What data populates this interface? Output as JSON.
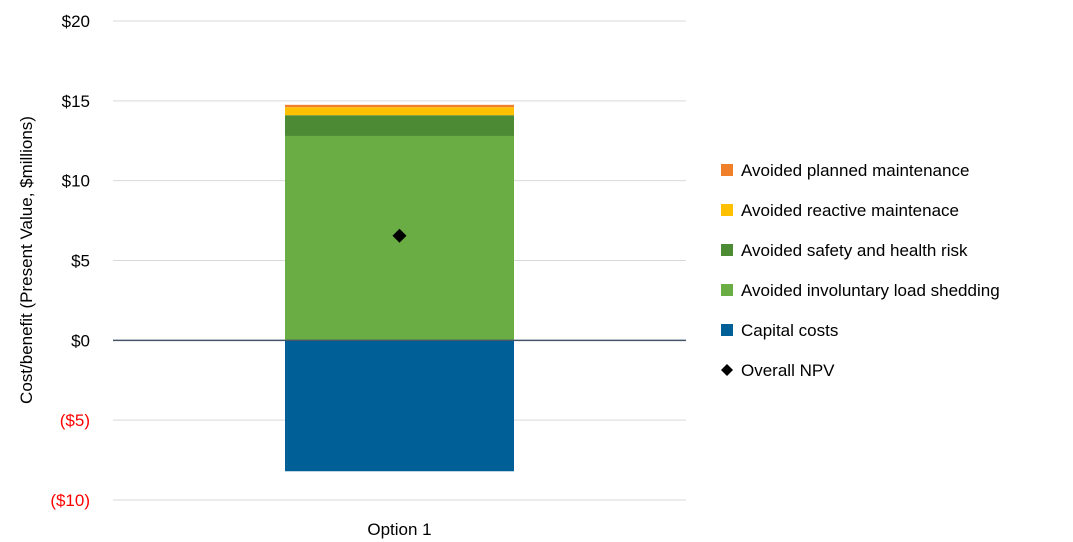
{
  "chart_data": {
    "type": "bar",
    "stacked": true,
    "categories": [
      "Option 1"
    ],
    "ylabel": "Cost/benefit (Present Value, $millions)",
    "ylim": [
      -10,
      20
    ],
    "yticks": [
      {
        "value": 20,
        "label": "$20",
        "color": "#000000"
      },
      {
        "value": 15,
        "label": "$15",
        "color": "#000000"
      },
      {
        "value": 10,
        "label": "$10",
        "color": "#000000"
      },
      {
        "value": 5,
        "label": "$5",
        "color": "#000000"
      },
      {
        "value": 0,
        "label": "$0",
        "color": "#000000"
      },
      {
        "value": -5,
        "label": "($5)",
        "color": "#ff0000"
      },
      {
        "value": -10,
        "label": "($10)",
        "color": "#ff0000"
      }
    ],
    "grid": true,
    "legend_position": "right",
    "series": [
      {
        "name": "Capital costs",
        "values": [
          -8.2
        ],
        "color": "#005f96"
      },
      {
        "name": "Avoided involuntary load shedding",
        "values": [
          12.8
        ],
        "color": "#6aad45"
      },
      {
        "name": "Avoided safety and health risk",
        "values": [
          1.3
        ],
        "color": "#4c8a34"
      },
      {
        "name": "Avoided reactive maintenace",
        "values": [
          0.5
        ],
        "color": "#ffc000"
      },
      {
        "name": "Avoided planned maintenance",
        "values": [
          0.15
        ],
        "color": "#f07f2a"
      }
    ],
    "overlay": {
      "name": "Overall NPV",
      "values": [
        6.55
      ],
      "marker": "diamond",
      "color": "#000000"
    },
    "legend": [
      {
        "name": "Avoided planned maintenance",
        "color": "#f07f2a",
        "marker": "square"
      },
      {
        "name": "Avoided reactive maintenace",
        "color": "#ffc000",
        "marker": "square"
      },
      {
        "name": "Avoided safety and health risk",
        "color": "#4c8a34",
        "marker": "square"
      },
      {
        "name": "Avoided involuntary load shedding",
        "color": "#6aad45",
        "marker": "square"
      },
      {
        "name": "Capital costs",
        "color": "#005f96",
        "marker": "square"
      },
      {
        "name": "Overall NPV",
        "color": "#000000",
        "marker": "diamond"
      }
    ]
  }
}
